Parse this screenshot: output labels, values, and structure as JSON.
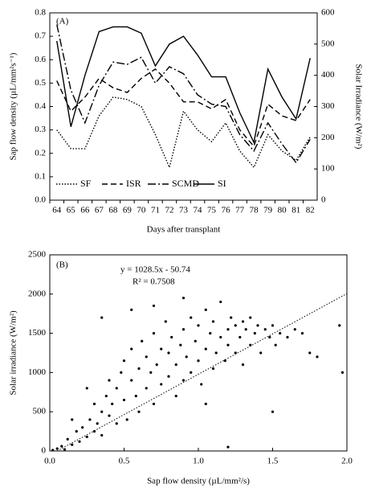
{
  "chart_data": [
    {
      "type": "line",
      "annotation": "(A)",
      "xlabel": "Days after transplant",
      "ylabel": "Sap flow density (µL/mm²s⁻¹)",
      "y2label": "Solar Irradiance (W/m²)",
      "categories": [
        "64",
        "65",
        "66",
        "67",
        "68",
        "69",
        "70",
        "71",
        "72",
        "73",
        "74",
        "75",
        "76",
        "77",
        "78",
        "79",
        "80",
        "81",
        "82"
      ],
      "ylim": [
        0,
        0.8
      ],
      "yticks": [
        {
          "value": 0,
          "label": "0.0"
        },
        {
          "value": 0.1,
          "label": "0.1"
        },
        {
          "value": 0.2,
          "label": "0.2"
        },
        {
          "value": 0.3,
          "label": "0.3"
        },
        {
          "value": 0.4,
          "label": "0.4"
        },
        {
          "value": 0.5,
          "label": "0.5"
        },
        {
          "value": 0.6,
          "label": "0.6"
        },
        {
          "value": 0.7,
          "label": "0.7"
        },
        {
          "value": 0.8,
          "label": "0.8"
        }
      ],
      "y2lim": [
        0,
        600
      ],
      "y2ticks": [
        0,
        100,
        200,
        300,
        400,
        500,
        600
      ],
      "legend": "lower left",
      "series": [
        {
          "name": "SF",
          "color": "#000000",
          "linestyle": "dotted",
          "values": [
            0.3,
            0.22,
            0.22,
            0.36,
            0.44,
            0.43,
            0.4,
            0.28,
            0.14,
            0.38,
            0.3,
            0.25,
            0.33,
            0.21,
            0.14,
            0.28,
            0.21,
            0.17,
            0.27
          ]
        },
        {
          "name": "ISR",
          "color": "#000000",
          "linestyle": "dashed",
          "values": [
            0.51,
            0.38,
            0.44,
            0.52,
            0.48,
            0.46,
            0.52,
            0.56,
            0.5,
            0.42,
            0.42,
            0.39,
            0.43,
            0.3,
            0.23,
            0.41,
            0.36,
            0.34,
            0.43
          ]
        },
        {
          "name": "SCMD",
          "color": "#000000",
          "linestyle": "dashdot",
          "values": [
            0.75,
            0.47,
            0.33,
            0.49,
            0.59,
            0.58,
            0.61,
            0.5,
            0.57,
            0.54,
            0.45,
            0.41,
            0.4,
            0.28,
            0.21,
            0.33,
            0.24,
            0.16,
            0.26
          ]
        },
        {
          "name": "SI",
          "color": "#000000",
          "linestyle": "solid",
          "axis": "y2",
          "values": [
            510,
            235,
            400,
            540,
            555,
            555,
            535,
            430,
            500,
            525,
            465,
            395,
            395,
            280,
            185,
            420,
            330,
            260,
            455
          ]
        }
      ]
    },
    {
      "type": "scatter",
      "annotation": "(B)",
      "equation": "y = 1028.5x - 50.74",
      "r2": "R² = 0.7508",
      "trendline": {
        "slope": 1028.5,
        "intercept": -50.74
      },
      "xlabel": "Sap flow density (µL/mm²/s)",
      "ylabel": "Solar irradiance (W/m²)",
      "color": "#000000",
      "xlim": [
        0,
        2
      ],
      "xticks": [
        {
          "value": 0,
          "label": "0.0"
        },
        {
          "value": 0.5,
          "label": "0.5"
        },
        {
          "value": 1,
          "label": "1.0"
        },
        {
          "value": 1.5,
          "label": "1.5"
        },
        {
          "value": 2,
          "label": "2.0"
        }
      ],
      "ylim": [
        0,
        2500
      ],
      "yticks": [
        0,
        500,
        1000,
        1500,
        2000,
        2500
      ],
      "x": [
        0.02,
        0.05,
        0.08,
        0.1,
        0.12,
        0.15,
        0.18,
        0.2,
        0.22,
        0.25,
        0.27,
        0.3,
        0.3,
        0.32,
        0.35,
        0.35,
        0.38,
        0.4,
        0.4,
        0.42,
        0.45,
        0.45,
        0.48,
        0.5,
        0.5,
        0.52,
        0.55,
        0.55,
        0.58,
        0.6,
        0.6,
        0.62,
        0.65,
        0.65,
        0.68,
        0.7,
        0.7,
        0.72,
        0.75,
        0.75,
        0.78,
        0.8,
        0.8,
        0.82,
        0.85,
        0.85,
        0.88,
        0.9,
        0.9,
        0.92,
        0.95,
        0.95,
        0.98,
        1.0,
        1.0,
        1.02,
        1.05,
        1.05,
        1.08,
        1.1,
        1.1,
        1.12,
        1.15,
        1.15,
        1.18,
        1.2,
        1.2,
        1.22,
        1.25,
        1.25,
        1.28,
        1.3,
        1.3,
        1.32,
        1.35,
        1.35,
        1.38,
        1.4,
        1.42,
        1.45,
        1.48,
        1.5,
        1.52,
        1.55,
        1.6,
        1.65,
        1.7,
        1.75,
        1.8,
        1.95,
        1.97,
        0.35,
        0.55,
        0.7,
        1.2,
        1.5,
        0.25,
        0.15,
        0.9,
        1.05
      ],
      "y": [
        10,
        30,
        60,
        20,
        150,
        80,
        250,
        120,
        300,
        180,
        400,
        250,
        600,
        350,
        500,
        200,
        700,
        450,
        900,
        600,
        800,
        350,
        1000,
        650,
        1150,
        400,
        900,
        1300,
        700,
        1050,
        500,
        1400,
        800,
        1200,
        1000,
        1500,
        600,
        1100,
        1300,
        850,
        1650,
        950,
        1250,
        1450,
        700,
        1100,
        1350,
        1550,
        900,
        1200,
        1700,
        1000,
        1400,
        1150,
        1600,
        850,
        1300,
        1800,
        1500,
        1050,
        1650,
        1250,
        1450,
        1900,
        1150,
        1550,
        1350,
        1700,
        1250,
        1600,
        1450,
        1650,
        1100,
        1550,
        1350,
        1700,
        1500,
        1600,
        1250,
        1550,
        1450,
        1600,
        1350,
        1500,
        1450,
        1550,
        1500,
        1250,
        1200,
        1600,
        1000,
        1700,
        1800,
        1850,
        50,
        500,
        800,
        400,
        1950,
        600
      ]
    }
  ]
}
